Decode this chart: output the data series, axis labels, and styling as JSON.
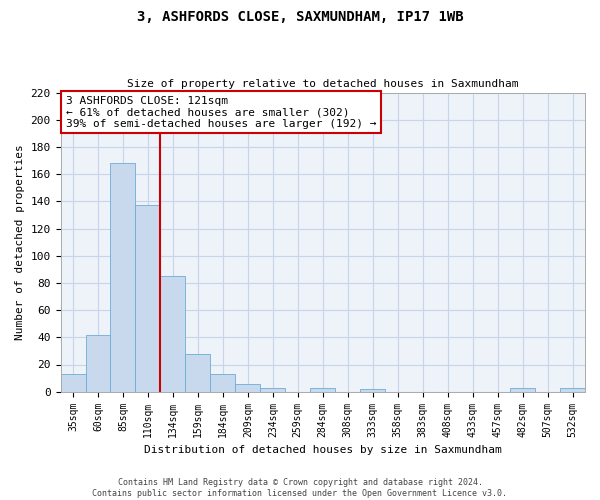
{
  "title": "3, ASHFORDS CLOSE, SAXMUNDHAM, IP17 1WB",
  "subtitle": "Size of property relative to detached houses in Saxmundham",
  "xlabel": "Distribution of detached houses by size in Saxmundham",
  "ylabel": "Number of detached properties",
  "bin_labels": [
    "35sqm",
    "60sqm",
    "85sqm",
    "110sqm",
    "134sqm",
    "159sqm",
    "184sqm",
    "209sqm",
    "234sqm",
    "259sqm",
    "284sqm",
    "308sqm",
    "333sqm",
    "358sqm",
    "383sqm",
    "408sqm",
    "433sqm",
    "457sqm",
    "482sqm",
    "507sqm",
    "532sqm"
  ],
  "bar_values": [
    13,
    42,
    168,
    137,
    85,
    28,
    13,
    6,
    3,
    0,
    3,
    0,
    2,
    0,
    0,
    0,
    0,
    0,
    3,
    0,
    3
  ],
  "bar_color": "#c8d9ee",
  "bar_edge_color": "#6baed6",
  "vline_x": 3.5,
  "vline_color": "#cc0000",
  "annotation_title": "3 ASHFORDS CLOSE: 121sqm",
  "annotation_line1": "← 61% of detached houses are smaller (302)",
  "annotation_line2": "39% of semi-detached houses are larger (192) →",
  "annotation_box_color": "#ffffff",
  "annotation_box_edge": "#cc0000",
  "ylim": [
    0,
    220
  ],
  "yticks": [
    0,
    20,
    40,
    60,
    80,
    100,
    120,
    140,
    160,
    180,
    200,
    220
  ],
  "footer1": "Contains HM Land Registry data © Crown copyright and database right 2024.",
  "footer2": "Contains public sector information licensed under the Open Government Licence v3.0.",
  "grid_color": "#c8d4e8",
  "plot_bg_color": "#eef2f9",
  "background_color": "#ffffff"
}
